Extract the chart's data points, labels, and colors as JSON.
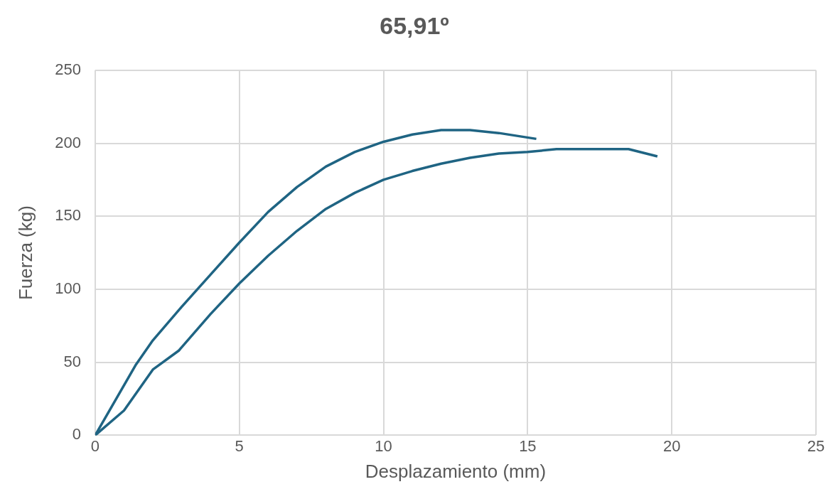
{
  "chart_data": {
    "type": "line",
    "title": "65,91º",
    "xlabel": "Desplazamiento (mm)",
    "ylabel": "Fuerza (kg)",
    "xlim": [
      0,
      25
    ],
    "xticks": [
      0,
      5,
      10,
      15,
      20,
      25
    ],
    "ylim": [
      0,
      250
    ],
    "yticks": [
      0,
      50,
      100,
      150,
      200,
      250
    ],
    "grid": true,
    "legend": false,
    "marker": "none",
    "line_style": "solid",
    "series": [
      {
        "color": "#1f6483",
        "x": [
          0,
          1.4,
          2,
          3,
          4,
          5,
          6,
          7,
          8,
          9,
          10,
          11,
          12,
          13,
          14,
          15.3
        ],
        "values": [
          0,
          48,
          65,
          88,
          110,
          132,
          153,
          170,
          184,
          194,
          201,
          206,
          209,
          209,
          207,
          203
        ]
      },
      {
        "color": "#1f6483",
        "x": [
          0,
          1,
          2,
          2.9,
          4,
          5,
          6,
          7,
          8,
          9,
          10,
          11,
          12,
          13,
          14,
          15,
          16,
          17,
          18.5,
          19.5
        ],
        "values": [
          0,
          17,
          45,
          58,
          83,
          104,
          123,
          140,
          155,
          166,
          175,
          181,
          186,
          190,
          193,
          194,
          196,
          196,
          196,
          191
        ]
      }
    ]
  }
}
